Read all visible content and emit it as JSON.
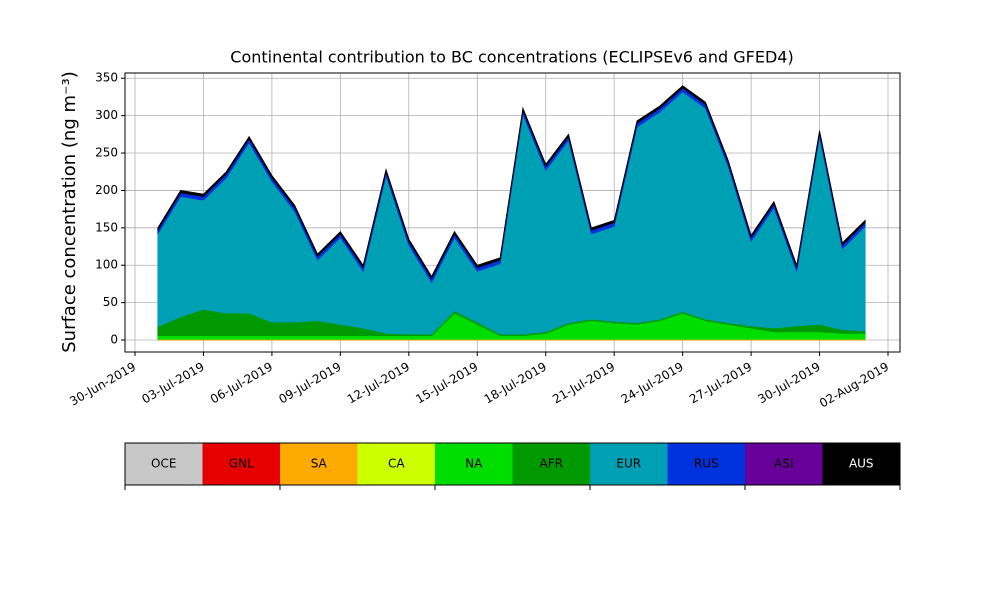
{
  "chart_data": {
    "type": "stacked_area",
    "title": "Continental contribution to BC concentrations (ECLIPSEv6 and GFED4)",
    "y_label": "Surface concentration (ng m⁻³)",
    "x": [
      "2019-07-01",
      "2019-07-02",
      "2019-07-03",
      "2019-07-04",
      "2019-07-05",
      "2019-07-06",
      "2019-07-07",
      "2019-07-08",
      "2019-07-09",
      "2019-07-10",
      "2019-07-11",
      "2019-07-12",
      "2019-07-13",
      "2019-07-14",
      "2019-07-15",
      "2019-07-16",
      "2019-07-17",
      "2019-07-18",
      "2019-07-19",
      "2019-07-20",
      "2019-07-21",
      "2019-07-22",
      "2019-07-23",
      "2019-07-24",
      "2019-07-25",
      "2019-07-26",
      "2019-07-27",
      "2019-07-28",
      "2019-07-29",
      "2019-07-30",
      "2019-07-31",
      "2019-08-01"
    ],
    "series": [
      {
        "name": "OCE",
        "color": "#c8c8c8",
        "values": [
          0,
          0,
          0,
          0,
          0,
          0,
          0,
          0,
          0,
          0,
          0,
          0,
          0,
          0,
          0,
          0,
          0,
          0,
          0,
          0,
          0,
          0,
          0,
          0,
          0,
          0,
          0,
          0,
          0,
          0,
          0,
          0
        ]
      },
      {
        "name": "GNL",
        "color": "#e60000",
        "values": [
          0,
          0,
          0,
          0,
          0,
          0,
          0,
          0,
          0,
          0,
          0,
          0,
          0,
          0,
          0,
          0,
          0,
          0,
          0,
          0,
          0,
          0,
          0,
          0,
          0,
          0,
          0,
          0,
          0,
          0,
          0,
          0
        ]
      },
      {
        "name": "SA",
        "color": "#ffaa00",
        "values": [
          1,
          1,
          1,
          1,
          1,
          1,
          1,
          1,
          1,
          1,
          1,
          1,
          1,
          1,
          1,
          1,
          1,
          1,
          1,
          1,
          1,
          1,
          1,
          1,
          1,
          1,
          1,
          1,
          1,
          1,
          1,
          1
        ]
      },
      {
        "name": "CA",
        "color": "#ccff00",
        "values": [
          0,
          0,
          0,
          0,
          0,
          0,
          0,
          0,
          0,
          0,
          0,
          0,
          0,
          0,
          0,
          0,
          0,
          0,
          0,
          0,
          0,
          0,
          0,
          0,
          0,
          0,
          0,
          0,
          0,
          0,
          0,
          0
        ]
      },
      {
        "name": "NA",
        "color": "#00dd00",
        "values": [
          5,
          5,
          5,
          5,
          5,
          5,
          5,
          5,
          5,
          5,
          5,
          5,
          5,
          35,
          20,
          5,
          5,
          8,
          20,
          25,
          22,
          20,
          25,
          35,
          25,
          20,
          15,
          10,
          10,
          10,
          8,
          8
        ]
      },
      {
        "name": "AFR",
        "color": "#009900",
        "values": [
          12,
          25,
          35,
          30,
          30,
          18,
          18,
          20,
          15,
          10,
          3,
          2,
          2,
          3,
          3,
          2,
          2,
          2,
          2,
          2,
          2,
          2,
          2,
          2,
          2,
          2,
          3,
          5,
          8,
          10,
          5,
          3
        ]
      },
      {
        "name": "EUR",
        "color": "#00a0b4",
        "values": [
          124,
          161,
          146,
          181,
          228,
          188,
          148,
          81,
          116,
          76,
          211,
          119,
          69,
          98,
          68,
          94,
          294,
          216,
          244,
          114,
          127,
          262,
          277,
          294,
          282,
          209,
          113,
          161,
          73,
          251,
          108,
          140
        ]
      },
      {
        "name": "RUS",
        "color": "#0033dd",
        "values": [
          5,
          5,
          5,
          5,
          5,
          5,
          5,
          5,
          5,
          5,
          5,
          5,
          5,
          5,
          5,
          5,
          5,
          5,
          5,
          5,
          5,
          5,
          5,
          5,
          5,
          5,
          5,
          5,
          5,
          5,
          5,
          5
        ]
      },
      {
        "name": "ASI",
        "color": "#660099",
        "values": [
          0,
          0,
          0,
          0,
          0,
          0,
          0,
          0,
          0,
          0,
          0,
          0,
          0,
          0,
          0,
          0,
          0,
          0,
          0,
          0,
          0,
          0,
          0,
          0,
          0,
          0,
          0,
          0,
          0,
          0,
          0,
          0
        ]
      },
      {
        "name": "AUS",
        "color": "#000000",
        "values": [
          3,
          3,
          3,
          3,
          3,
          3,
          3,
          3,
          3,
          3,
          3,
          3,
          3,
          3,
          3,
          3,
          3,
          3,
          3,
          3,
          3,
          3,
          3,
          3,
          3,
          3,
          3,
          3,
          3,
          3,
          3,
          3
        ]
      }
    ],
    "xlim": [
      "2019-06-30",
      "2019-08-02"
    ],
    "xticks": [
      {
        "value": "2019-06-30",
        "label": "30-Jun-2019"
      },
      {
        "value": "2019-07-03",
        "label": "03-Jul-2019"
      },
      {
        "value": "2019-07-06",
        "label": "06-Jul-2019"
      },
      {
        "value": "2019-07-09",
        "label": "09-Jul-2019"
      },
      {
        "value": "2019-07-12",
        "label": "12-Jul-2019"
      },
      {
        "value": "2019-07-15",
        "label": "15-Jul-2019"
      },
      {
        "value": "2019-07-18",
        "label": "18-Jul-2019"
      },
      {
        "value": "2019-07-21",
        "label": "21-Jul-2019"
      },
      {
        "value": "2019-07-24",
        "label": "24-Jul-2019"
      },
      {
        "value": "2019-07-27",
        "label": "27-Jul-2019"
      },
      {
        "value": "2019-07-30",
        "label": "30-Jul-2019"
      },
      {
        "value": "2019-08-02",
        "label": "02-Aug-2019"
      }
    ],
    "ylim": [
      -16,
      357
    ],
    "yticks": [
      0,
      50,
      100,
      150,
      200,
      250,
      300,
      350
    ],
    "grid": true
  }
}
